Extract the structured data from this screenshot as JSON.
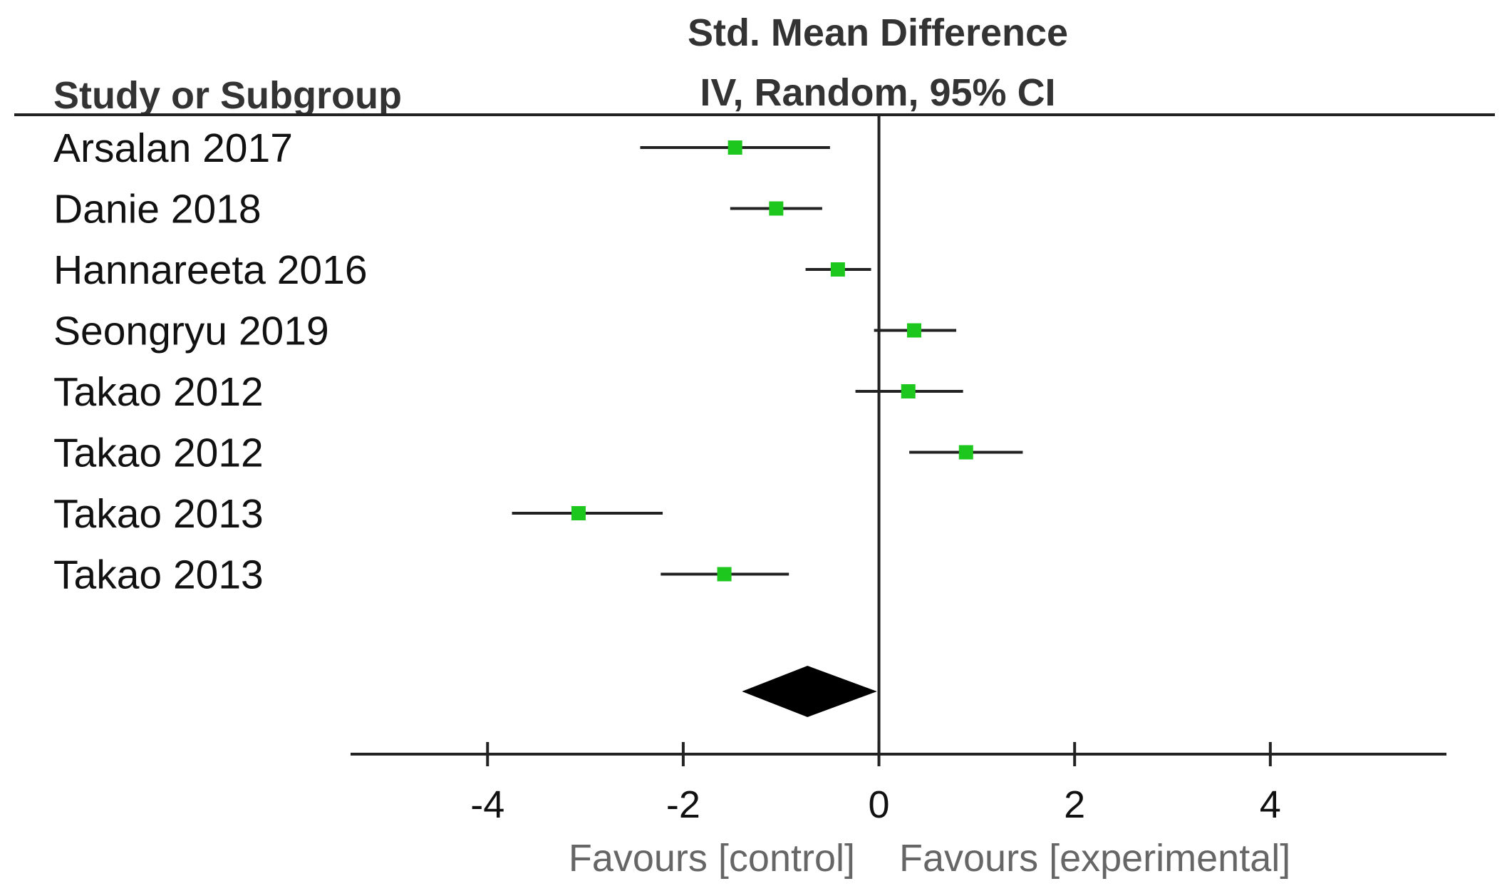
{
  "chart_data": {
    "type": "forest",
    "header": {
      "col1": "Study or Subgroup",
      "col2_line1": "Std. Mean Difference",
      "col2_line2": "IV, Random, 95% CI"
    },
    "studies": [
      {
        "label": "Arsalan 2017",
        "est": -1.47,
        "lo": -2.44,
        "hi": -0.5
      },
      {
        "label": "Danie 2018",
        "est": -1.05,
        "lo": -1.52,
        "hi": -0.58
      },
      {
        "label": "Hannareeta 2016",
        "est": -0.42,
        "lo": -0.75,
        "hi": -0.08
      },
      {
        "label": "Seongryu 2019",
        "est": 0.36,
        "lo": -0.05,
        "hi": 0.79
      },
      {
        "label": "Takao 2012",
        "est": 0.3,
        "lo": -0.24,
        "hi": 0.86
      },
      {
        "label": "Takao 2012",
        "est": 0.89,
        "lo": 0.31,
        "hi": 1.47
      },
      {
        "label": "Takao 2013",
        "est": -3.07,
        "lo": -3.75,
        "hi": -2.21
      },
      {
        "label": "Takao 2013",
        "est": -1.58,
        "lo": -2.23,
        "hi": -0.92
      }
    ],
    "pooled": {
      "est": -0.73,
      "lo": -1.4,
      "hi": -0.02
    },
    "x_ticks": [
      -4,
      -2,
      0,
      2,
      4
    ],
    "x_tick_labels": [
      "-4",
      "-2",
      "0",
      "2",
      "4"
    ],
    "xlim": [
      -5.4,
      5.8
    ],
    "favours_left": "Favours [control]",
    "favours_right": "Favours [experimental]",
    "colors": {
      "marker": "#1ec71e",
      "diamond": "#000000",
      "line": "#222222"
    }
  }
}
